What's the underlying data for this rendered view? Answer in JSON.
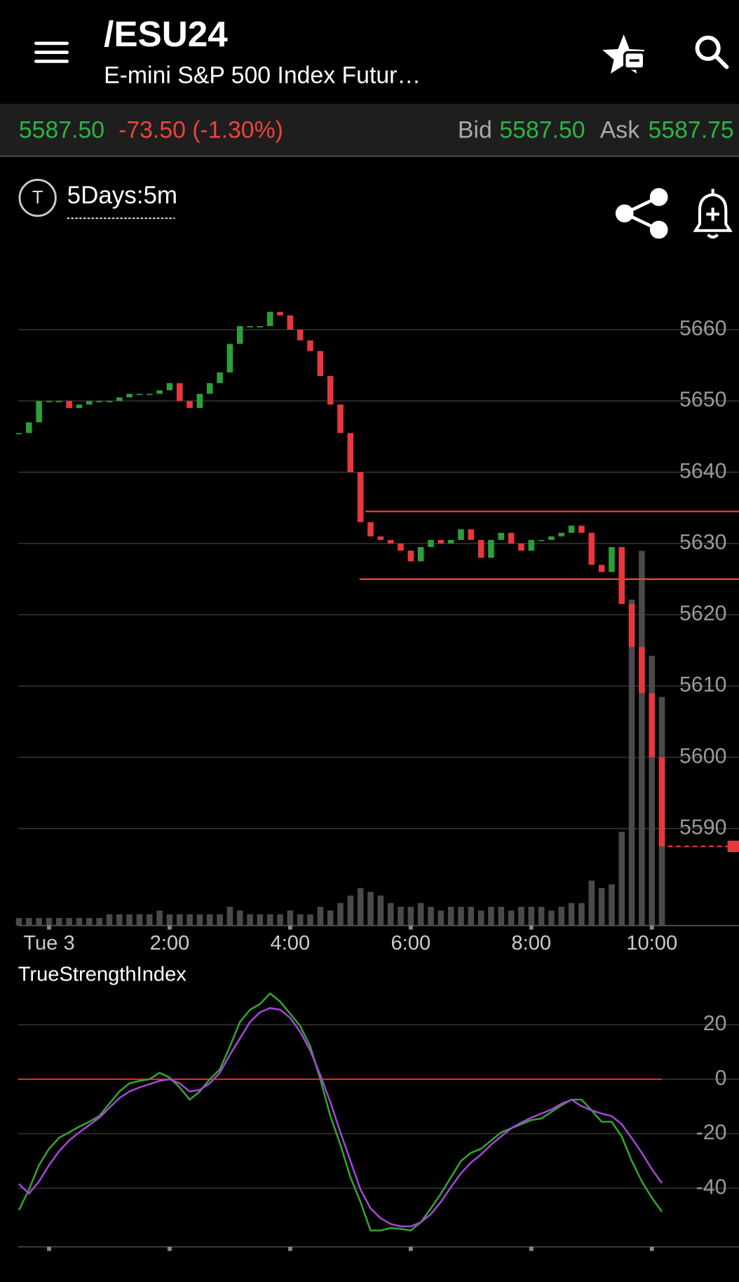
{
  "header": {
    "symbol": "/ESU24",
    "description": "E-mini S&P 500 Index Futur…"
  },
  "quote": {
    "last": "5587.50",
    "change": "-73.50 (-1.30%)",
    "bid_label": "Bid",
    "bid": "5587.50",
    "ask_label": "Ask",
    "ask": "5587.75"
  },
  "toolbar": {
    "badge": "T",
    "period": "5Days:5m"
  },
  "chart_data": [
    {
      "type": "candlestick",
      "x": [
        -30,
        -20,
        -10,
        0,
        10,
        20,
        30,
        40,
        50,
        60,
        70,
        80,
        90,
        100,
        110,
        120,
        130,
        140,
        150,
        160,
        170,
        180,
        190,
        200,
        210,
        220,
        230,
        240,
        250,
        260,
        270,
        280,
        290,
        300,
        310,
        320,
        330,
        340,
        350,
        360,
        370,
        380,
        390,
        400,
        410,
        420,
        430,
        440,
        450,
        460,
        470,
        480,
        490,
        500,
        510,
        520,
        530,
        540,
        550,
        560,
        570,
        580,
        590,
        600,
        610
      ],
      "close": [
        5645.5,
        5647,
        5650,
        5650,
        5650,
        5649,
        5649.5,
        5650,
        5650,
        5650,
        5650.5,
        5651,
        5651,
        5651,
        5651.5,
        5652.5,
        5650,
        5649,
        5651,
        5652.5,
        5654,
        5658,
        5660.5,
        5660.5,
        5660.5,
        5662.5,
        5662,
        5660,
        5658.5,
        5657,
        5653.5,
        5649.5,
        5645.5,
        5640,
        5633,
        5631,
        5630.5,
        5630,
        5629,
        5627.5,
        5629.5,
        5630.5,
        5630,
        5630.5,
        5632,
        5630.5,
        5628,
        5630.5,
        5631.5,
        5630,
        5629,
        5630.5,
        5630.5,
        5631,
        5631.5,
        5632.5,
        5631.5,
        5627,
        5626,
        5629.5,
        5621.5,
        5615.5,
        5609,
        5600,
        5587.5
      ],
      "volume": [
        2,
        2,
        2,
        2,
        2,
        2,
        2,
        2,
        2,
        3,
        3,
        3,
        3,
        3,
        4,
        3,
        3,
        3,
        3,
        3,
        3,
        5,
        4,
        3,
        3,
        3,
        3,
        4,
        3,
        3,
        5,
        4,
        6,
        8,
        10,
        9,
        8,
        6,
        5,
        5,
        6,
        5,
        4,
        5,
        5,
        5,
        4,
        5,
        5,
        4,
        5,
        5,
        5,
        4,
        5,
        6,
        6,
        12,
        10,
        11,
        25,
        87,
        100,
        72,
        61
      ],
      "up_color": "#2e9e3a",
      "down_color": "#e8373e",
      "volume_color": "#4a4a4a",
      "levels": [
        {
          "value": 5634.5,
          "x": 315
        },
        {
          "value": 5625,
          "x": 309
        }
      ],
      "level_color": "#e8453c",
      "xlim": [
        -30.9,
        686.7
      ],
      "xticks": [
        {
          "value": 0,
          "label": "Tue 3"
        },
        {
          "value": 120,
          "label": "2:00"
        },
        {
          "value": 240,
          "label": "4:00"
        },
        {
          "value": 360,
          "label": "6:00"
        },
        {
          "value": 480,
          "label": "8:00"
        },
        {
          "value": 600,
          "label": "10:00"
        }
      ],
      "ylim": [
        5576.4,
        5668.4
      ],
      "yticks": [
        5590,
        5600,
        5610,
        5620,
        5630,
        5640,
        5650,
        5660
      ],
      "volume_ylim": [
        0,
        175
      ],
      "grid": true
    },
    {
      "type": "line",
      "title": "TrueStrengthIndex",
      "x": [
        -30,
        -20,
        -10,
        0,
        10,
        20,
        30,
        40,
        50,
        60,
        70,
        80,
        90,
        100,
        110,
        120,
        130,
        140,
        150,
        160,
        170,
        180,
        190,
        200,
        210,
        220,
        230,
        240,
        250,
        260,
        270,
        280,
        290,
        300,
        310,
        320,
        330,
        340,
        350,
        360,
        370,
        380,
        390,
        400,
        410,
        420,
        430,
        440,
        450,
        460,
        470,
        480,
        490,
        500,
        510,
        520,
        530,
        540,
        550,
        560,
        570,
        580,
        590,
        600,
        610
      ],
      "series": [
        {
          "color": "#34a332",
          "values": [
            -48,
            -40.5,
            -31.5,
            -25.5,
            -21.5,
            -19.5,
            -17.4,
            -15.6,
            -13.5,
            -9,
            -4.5,
            -1.5,
            -0.6,
            0,
            2.4,
            0.6,
            -3,
            -7.5,
            -4.5,
            0,
            3.6,
            12,
            21,
            25.5,
            27.6,
            31.5,
            28.5,
            24,
            19.5,
            12,
            0,
            -13.5,
            -24,
            -36,
            -45,
            -55.5,
            -55.5,
            -54.6,
            -54.9,
            -55.5,
            -52.5,
            -47.4,
            -42,
            -36,
            -30,
            -27,
            -25.5,
            -22.5,
            -19.5,
            -18,
            -16.5,
            -15,
            -14.4,
            -12,
            -9.6,
            -7.5,
            -7.5,
            -11.4,
            -15.6,
            -15.6,
            -21,
            -30,
            -37.5,
            -43.5,
            -48.6
          ]
        },
        {
          "color": "#a346d6",
          "values": [
            -38.4,
            -42,
            -37.5,
            -31.5,
            -26.4,
            -22.5,
            -19.5,
            -16.8,
            -14.1,
            -10.5,
            -6.9,
            -4.5,
            -3,
            -1.8,
            -0.6,
            0,
            -1.5,
            -4.5,
            -3.9,
            -1.5,
            2.4,
            9,
            15,
            21,
            24.6,
            26.1,
            25.5,
            22.5,
            17.4,
            10.5,
            1.5,
            -8.4,
            -19.5,
            -30,
            -40.5,
            -47.4,
            -51,
            -53.1,
            -54,
            -54,
            -52.5,
            -49.5,
            -45,
            -39.6,
            -34.5,
            -30.6,
            -27.6,
            -24,
            -21,
            -18,
            -15.9,
            -14.1,
            -12.6,
            -11.1,
            -9,
            -7.5,
            -9.9,
            -11.4,
            -12.6,
            -13.5,
            -16.5,
            -21.6,
            -27,
            -33,
            -38.1
          ]
        }
      ],
      "hline": {
        "value": 0,
        "color": "#d42a2a"
      },
      "xlim": [
        -30.9,
        686.7
      ],
      "xticks": [
        0,
        120,
        240,
        360,
        480,
        600
      ],
      "ylim": [
        -61.5,
        36
      ],
      "yticks": [
        -40,
        -20,
        0,
        20
      ],
      "grid": true
    }
  ]
}
